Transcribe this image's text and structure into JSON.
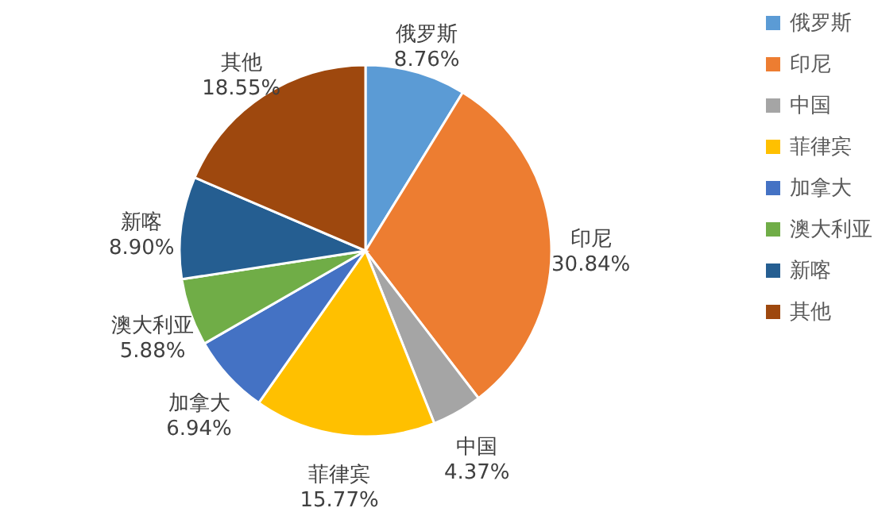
{
  "chart_data": {
    "type": "pie",
    "categories": [
      "俄罗斯",
      "印尼",
      "中国",
      "菲律宾",
      "加拿大",
      "澳大利亚",
      "新喀",
      "其他"
    ],
    "values": [
      8.76,
      30.84,
      4.37,
      15.77,
      6.94,
      5.88,
      8.9,
      18.55
    ],
    "value_labels": [
      "8.76%",
      "30.84%",
      "4.37%",
      "15.77%",
      "6.94%",
      "5.88%",
      "8.90%",
      "18.55%"
    ],
    "colors": [
      "#5b9bd5",
      "#ed7d31",
      "#a5a5a5",
      "#ffc000",
      "#4472c4",
      "#70ad47",
      "#255e91",
      "#9e480e"
    ],
    "legend": "right"
  }
}
